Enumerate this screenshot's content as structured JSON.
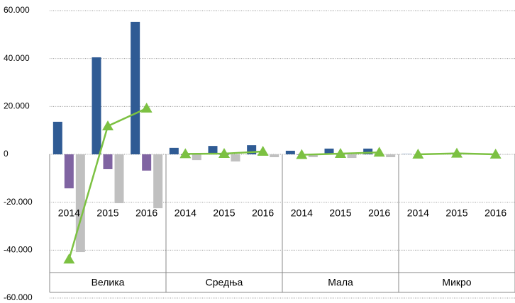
{
  "chart_data": {
    "type": "bar",
    "groups": [
      "Велика",
      "Средња",
      "Мала",
      "Микро"
    ],
    "categories": [
      "2014",
      "2015",
      "2016",
      "2014",
      "2015",
      "2016",
      "2014",
      "2015",
      "2016",
      "2014",
      "2015",
      "2016"
    ],
    "series": [
      {
        "color": "#2f5b94",
        "values": [
          13600,
          40500,
          55300,
          2700,
          3500,
          3800,
          1500,
          2400,
          2400,
          100,
          100,
          100
        ]
      },
      {
        "color": "#8064a2",
        "values": [
          -14200,
          -6200,
          -6800,
          -300,
          -300,
          -300,
          -200,
          -200,
          -200,
          -100,
          -100,
          -100
        ]
      },
      {
        "color": "#c0c0c0",
        "values": [
          -40800,
          -20400,
          -22500,
          -2400,
          -3000,
          -1200,
          -1200,
          -1500,
          -1200,
          -100,
          -100,
          -100
        ]
      },
      {
        "type": "line",
        "color": "#7cc142",
        "values": [
          -43800,
          11800,
          19200,
          200,
          300,
          1200,
          -200,
          300,
          800,
          0,
          400,
          0
        ]
      }
    ],
    "ylim": [
      -60000,
      60000
    ],
    "yticks": [
      {
        "value": 60000,
        "label": "60.000"
      },
      {
        "value": 40000,
        "label": "40.000"
      },
      {
        "value": 20000,
        "label": "20.000"
      },
      0,
      {
        "value": -20000,
        "label": "-20.000"
      },
      {
        "value": -40000,
        "label": "-40.000"
      },
      {
        "value": -60000,
        "label": "-60.000"
      }
    ],
    "grid": true
  }
}
